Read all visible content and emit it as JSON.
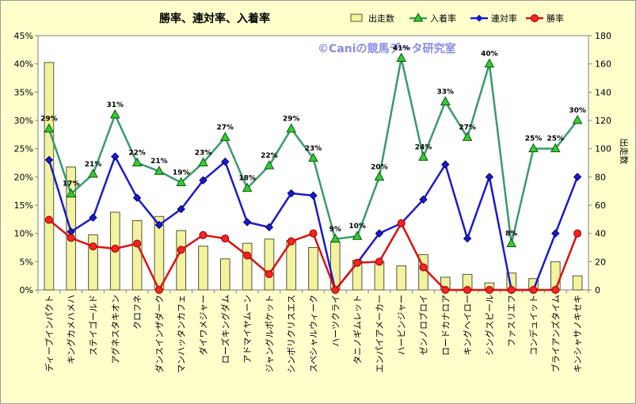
{
  "chart_data": {
    "type": "bar+line",
    "title": "勝率、連対率、入着率",
    "watermark": "©Caniの競馬データ研究室",
    "y_left": {
      "ticks": [
        "0%",
        "5%",
        "10%",
        "15%",
        "20%",
        "25%",
        "30%",
        "35%",
        "40%",
        "45%"
      ],
      "range": [
        0,
        45
      ]
    },
    "y_right": {
      "label": "出走数",
      "ticks": [
        "0",
        "20",
        "40",
        "60",
        "80",
        "100",
        "120",
        "140",
        "160",
        "180"
      ],
      "range": [
        0,
        180
      ]
    },
    "categories": [
      "ディープインパクト",
      "キングカメハメハ",
      "ステイゴールド",
      "アグネスタキオン",
      "クロフネ",
      "ダンスインザダーク",
      "マンハッタンカフェ",
      "ダイワメジャー",
      "ローズキングダム",
      "アドマイヤムーン",
      "ジャングルポケット",
      "シンボリクリスエス",
      "スペシャルウィーク",
      "ハーツクライ",
      "タニノギムレット",
      "エンパイアメーカー",
      "ハービンジャー",
      "ゼンノロブロイ",
      "ロードカナロア",
      "キングヘイロー",
      "シングスピール",
      "ファスリエフ",
      "コンデュイット",
      "ブライアンズタイム",
      "キンシャサノキセキ"
    ],
    "series": [
      {
        "name": "出走数",
        "kind": "bar",
        "axis": "right",
        "color": "#f2f2a0",
        "values": [
          161,
          87,
          39,
          55,
          49,
          52,
          42,
          31,
          22,
          33,
          36,
          35,
          30,
          34,
          21,
          20,
          17,
          25,
          9,
          11,
          5,
          12,
          8,
          20,
          10
        ]
      },
      {
        "name": "入着率",
        "kind": "line",
        "axis": "left",
        "color": "#3a9a6a",
        "marker": "triangle",
        "marker_color": "#33cc33",
        "values": [
          28.5,
          17,
          20.5,
          31,
          22.5,
          21,
          19,
          22.5,
          27,
          18,
          22,
          28.5,
          23.3,
          9,
          9.5,
          20,
          41,
          23.5,
          33.3,
          27,
          40,
          8.2,
          25,
          25,
          30
        ],
        "labels": [
          "29%",
          "17%",
          "21%",
          "31%",
          "22%",
          "21%",
          "19%",
          "23%",
          "27%",
          "18%",
          "22%",
          "29%",
          "23%",
          "9%",
          "10%",
          "20%",
          "41%",
          "24%",
          "33%",
          "27%",
          "40%",
          "8%",
          "25%",
          "25%",
          "30%"
        ]
      },
      {
        "name": "連対率",
        "kind": "line",
        "axis": "left",
        "color": "#1a1acc",
        "marker": "diamond",
        "marker_color": "#1a1acc",
        "values": [
          23,
          10.3,
          12.8,
          23.6,
          16.3,
          11.5,
          14.3,
          19.4,
          22.7,
          12,
          11.1,
          17.1,
          16.7,
          0,
          4.8,
          10,
          11.8,
          16,
          22.2,
          9.1,
          20,
          0,
          0,
          10,
          20
        ]
      },
      {
        "name": "勝率",
        "kind": "line",
        "axis": "left",
        "color": "#dd1111",
        "marker": "circle",
        "marker_color": "#ff2222",
        "values": [
          12.4,
          9.2,
          7.7,
          7.3,
          8.2,
          0,
          7.1,
          9.7,
          9.1,
          6.1,
          2.8,
          8.6,
          10,
          0,
          4.8,
          5,
          11.8,
          4,
          0,
          0,
          0,
          0,
          0,
          0,
          10
        ]
      }
    ],
    "legend_position": "top-right",
    "grid": false
  }
}
